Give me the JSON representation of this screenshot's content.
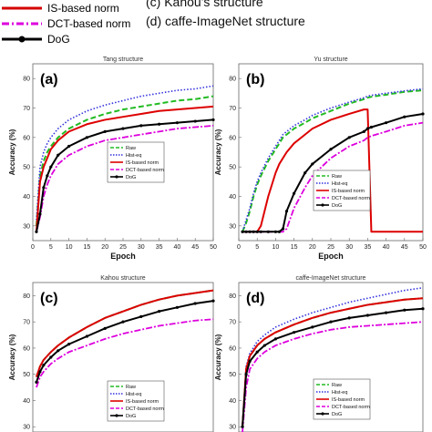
{
  "top_legend": [
    {
      "label": "IS-based norm",
      "color": "#d40000",
      "style": "solid"
    },
    {
      "label": "DCT-based norm",
      "color": "#dd00dd",
      "style": "dashdot"
    },
    {
      "label": "DoG",
      "color": "#000000",
      "style": "marker"
    }
  ],
  "captions": [
    "(c) Kahou's structure",
    "(d) caffe-ImageNet structure"
  ],
  "series_colors": {
    "Raw": "#22bb22",
    "Hist-eq": "#3333dd",
    "IS-based norm": "#dd0000",
    "DCT-based norm": "#dd00dd",
    "DoG": "#000000"
  },
  "chart_data": [
    {
      "type": "line",
      "panel_label": "(a)",
      "title": "Tang structure",
      "xlabel": "Epoch",
      "ylabel": "Accuracy (%)",
      "xlim": [
        0,
        50
      ],
      "ylim": [
        25,
        85
      ],
      "xticks": [
        0,
        5,
        10,
        15,
        20,
        25,
        30,
        35,
        40,
        45,
        50
      ],
      "yticks": [
        30,
        40,
        50,
        60,
        70,
        80
      ],
      "legend": {
        "placement": "right-center",
        "entries": [
          "Raw",
          "Hist-eq",
          "IS-based norm",
          "DCT-based norm",
          "DoG"
        ]
      },
      "x": [
        1,
        2,
        3,
        4,
        5,
        7,
        10,
        15,
        20,
        25,
        30,
        35,
        40,
        45,
        50
      ],
      "series": [
        {
          "name": "Raw",
          "values": [
            30,
            47,
            52,
            55,
            57,
            60,
            63,
            66,
            68,
            69.5,
            70.5,
            71.5,
            72.5,
            73,
            74
          ]
        },
        {
          "name": "Hist-eq",
          "values": [
            32,
            50,
            55,
            58,
            60,
            63,
            66,
            69,
            71,
            72.5,
            74,
            75,
            76,
            76.5,
            77.5
          ]
        },
        {
          "name": "IS-based norm",
          "values": [
            28,
            45,
            50,
            53,
            56,
            59,
            62,
            64.5,
            66,
            67,
            68,
            69,
            69.5,
            70,
            70.5
          ]
        },
        {
          "name": "DCT-based norm",
          "values": [
            28,
            33,
            40,
            44,
            47,
            51,
            54,
            57,
            59,
            60,
            61,
            62,
            63,
            63.5,
            64
          ]
        },
        {
          "name": "DoG",
          "values": [
            28,
            34,
            43,
            47,
            50,
            54,
            57,
            60,
            62,
            63,
            64,
            64.5,
            65,
            65.5,
            66
          ]
        }
      ]
    },
    {
      "type": "line",
      "panel_label": "(b)",
      "title": "Yu structure",
      "xlabel": "Epoch",
      "ylabel": "Accuracy (%)",
      "xlim": [
        0,
        50
      ],
      "ylim": [
        25,
        85
      ],
      "xticks": [
        0,
        5,
        10,
        15,
        20,
        25,
        30,
        35,
        40,
        45,
        50
      ],
      "yticks": [
        30,
        40,
        50,
        60,
        70,
        80
      ],
      "legend": {
        "placement": "bottom-right",
        "entries": [
          "Raw",
          "Hist-eq",
          "IS-based norm",
          "DCT-based norm",
          "DoG"
        ]
      },
      "x": [
        1,
        2,
        3,
        4,
        5,
        6,
        8,
        10,
        11,
        12,
        13,
        15,
        18,
        20,
        25,
        30,
        34,
        35,
        36,
        40,
        45,
        50
      ],
      "series": [
        {
          "name": "Raw",
          "values": [
            28,
            31,
            35,
            40,
            44,
            47,
            52,
            56,
            58,
            60,
            61,
            63,
            65,
            66.5,
            69,
            71.5,
            73,
            73.5,
            73.8,
            74.5,
            75.5,
            76
          ]
        },
        {
          "name": "Hist-eq",
          "values": [
            28,
            32,
            36,
            41,
            45,
            48,
            53,
            57,
            59,
            61,
            62,
            64,
            66,
            67.5,
            70,
            72,
            73.5,
            74,
            74.3,
            75,
            75.8,
            76.5
          ]
        },
        {
          "name": "IS-based norm",
          "values": [
            28,
            28,
            28,
            28,
            28,
            30,
            40,
            48,
            51,
            53,
            55,
            58,
            61,
            63,
            66,
            68,
            69.5,
            69.5,
            28,
            28,
            28,
            28
          ]
        },
        {
          "name": "DCT-based norm",
          "values": [
            28,
            28,
            28,
            28,
            28,
            28,
            28,
            28,
            28,
            28,
            29,
            36,
            43,
            47,
            53,
            57,
            59,
            60,
            60.5,
            62,
            64,
            65
          ]
        },
        {
          "name": "DoG",
          "values": [
            28,
            28,
            28,
            28,
            28,
            28,
            28,
            28,
            28,
            29,
            35,
            41,
            48,
            51,
            56,
            60,
            62,
            63,
            63.5,
            65,
            67,
            68
          ]
        }
      ]
    },
    {
      "type": "line",
      "panel_label": "(c)",
      "title": "Kahou structure",
      "xlabel": "",
      "ylabel": "Accuracy (%)",
      "xlim": [
        0,
        50
      ],
      "ylim": [
        28,
        85
      ],
      "xticks": [],
      "yticks": [
        30,
        40,
        50,
        60,
        70,
        80
      ],
      "legend": {
        "placement": "bottom-right",
        "entries": [
          "Raw",
          "Hist-eq",
          "IS-based norm",
          "DCT-based norm",
          "DoG"
        ]
      },
      "x": [
        1,
        2,
        3,
        5,
        7,
        10,
        15,
        20,
        25,
        30,
        35,
        40,
        45,
        50
      ],
      "series": [
        {
          "name": "Raw",
          "values": [
            49,
            53,
            55.5,
            58.5,
            61,
            64,
            68,
            71.5,
            74,
            76.5,
            78.5,
            80,
            81,
            82
          ]
        },
        {
          "name": "Hist-eq",
          "values": [
            49,
            53,
            55.5,
            58.5,
            61,
            64,
            68,
            71.5,
            74,
            76.5,
            78.5,
            80,
            81,
            82
          ]
        },
        {
          "name": "IS-based norm",
          "values": [
            49,
            53,
            55.5,
            58.5,
            61,
            64,
            68,
            71.5,
            74,
            76.5,
            78.5,
            80,
            81,
            82
          ]
        },
        {
          "name": "DCT-based norm",
          "values": [
            45,
            49,
            51,
            54,
            56,
            58.5,
            61,
            63.5,
            65.5,
            67,
            68.5,
            69.5,
            70.5,
            71
          ]
        },
        {
          "name": "DoG",
          "values": [
            47,
            51,
            53.5,
            56.5,
            59,
            61.5,
            64.5,
            67.5,
            70,
            72,
            74,
            75.5,
            77,
            78
          ]
        }
      ]
    },
    {
      "type": "line",
      "panel_label": "(d)",
      "title": "caffe-ImageNet structure",
      "xlabel": "",
      "ylabel": "Accuracy (%)",
      "xlim": [
        0,
        50
      ],
      "ylim": [
        28,
        85
      ],
      "xticks": [],
      "yticks": [
        30,
        40,
        50,
        60,
        70,
        80
      ],
      "legend": {
        "placement": "bottom-right",
        "entries": [
          "Raw",
          "Hist-eq",
          "IS-based norm",
          "DCT-based norm",
          "DoG"
        ]
      },
      "x": [
        1,
        2,
        3,
        5,
        7,
        10,
        15,
        20,
        25,
        30,
        35,
        40,
        45,
        50
      ],
      "series": [
        {
          "name": "Raw",
          "values": [
            30,
            52,
            57,
            61,
            63.5,
            66,
            69,
            71.5,
            73.5,
            75,
            76.5,
            77.5,
            78.5,
            79
          ]
        },
        {
          "name": "Hist-eq",
          "values": [
            31,
            53,
            58,
            62.5,
            65,
            68,
            71,
            73.5,
            75.5,
            77.5,
            79,
            80.5,
            82,
            83
          ]
        },
        {
          "name": "IS-based norm",
          "values": [
            30,
            52,
            57,
            61,
            63.5,
            66,
            69,
            71.5,
            73.5,
            75,
            76.5,
            77.5,
            78.5,
            79
          ]
        },
        {
          "name": "DCT-based norm",
          "values": [
            28,
            45,
            52,
            56,
            58.5,
            61,
            63.5,
            65.5,
            67,
            68,
            68.5,
            69,
            69.5,
            70
          ]
        },
        {
          "name": "DoG",
          "values": [
            30,
            50,
            55,
            58.5,
            61,
            63.5,
            66,
            68,
            70,
            71.5,
            72.5,
            73.5,
            74.5,
            75
          ]
        }
      ]
    }
  ]
}
